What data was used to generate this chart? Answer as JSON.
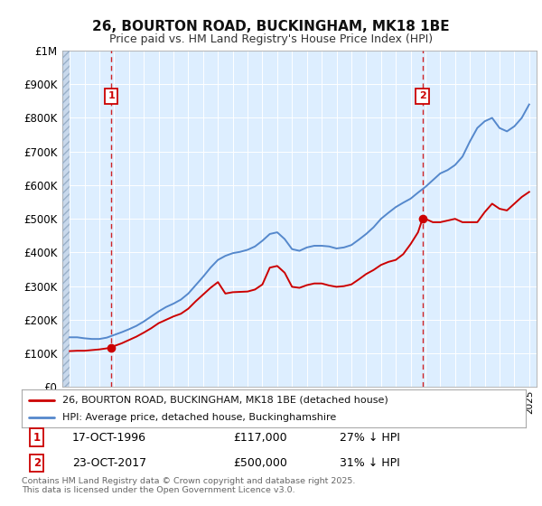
{
  "title": "26, BOURTON ROAD, BUCKINGHAM, MK18 1BE",
  "subtitle": "Price paid vs. HM Land Registry's House Price Index (HPI)",
  "bg_color": "#ddeeff",
  "grid_color": "#ffffff",
  "red_line_color": "#cc0000",
  "blue_line_color": "#5588cc",
  "sale1_year": 1996.8,
  "sale1_price": 117000,
  "sale1_label": "1",
  "sale2_year": 2017.8,
  "sale2_price": 500000,
  "sale2_label": "2",
  "ylim": [
    0,
    1000000
  ],
  "xlim_start": 1993.5,
  "xlim_end": 2025.5,
  "footer": "Contains HM Land Registry data © Crown copyright and database right 2025.\nThis data is licensed under the Open Government Licence v3.0.",
  "legend_line1": "26, BOURTON ROAD, BUCKINGHAM, MK18 1BE (detached house)",
  "legend_line2": "HPI: Average price, detached house, Buckinghamshire",
  "annotation1_date": "17-OCT-1996",
  "annotation1_price": "£117,000",
  "annotation1_note": "27% ↓ HPI",
  "annotation2_date": "23-OCT-2017",
  "annotation2_price": "£500,000",
  "annotation2_note": "31% ↓ HPI",
  "hpi_years": [
    1994,
    1994.5,
    1995,
    1995.5,
    1996,
    1996.5,
    1997,
    1997.5,
    1998,
    1998.5,
    1999,
    1999.5,
    2000,
    2000.5,
    2001,
    2001.5,
    2002,
    2002.5,
    2003,
    2003.5,
    2004,
    2004.5,
    2005,
    2005.5,
    2006,
    2006.5,
    2007,
    2007.5,
    2008,
    2008.5,
    2009,
    2009.5,
    2010,
    2010.5,
    2011,
    2011.5,
    2012,
    2012.5,
    2013,
    2013.5,
    2014,
    2014.5,
    2015,
    2015.5,
    2016,
    2016.5,
    2017,
    2017.5,
    2018,
    2018.5,
    2019,
    2019.5,
    2020,
    2020.5,
    2021,
    2021.5,
    2022,
    2022.5,
    2023,
    2023.5,
    2024,
    2024.5,
    2025
  ],
  "hpi_values": [
    148000,
    148000,
    145000,
    143000,
    143000,
    147000,
    155000,
    163000,
    172000,
    182000,
    195000,
    210000,
    225000,
    238000,
    248000,
    260000,
    278000,
    303000,
    328000,
    355000,
    378000,
    390000,
    398000,
    402000,
    408000,
    418000,
    435000,
    455000,
    460000,
    440000,
    410000,
    405000,
    415000,
    420000,
    420000,
    418000,
    412000,
    415000,
    422000,
    438000,
    455000,
    475000,
    500000,
    518000,
    535000,
    548000,
    560000,
    578000,
    595000,
    615000,
    635000,
    645000,
    660000,
    685000,
    730000,
    770000,
    790000,
    800000,
    770000,
    760000,
    775000,
    800000,
    840000
  ],
  "red_years": [
    1994,
    1994.5,
    1995,
    1995.5,
    1996,
    1996.8,
    1997,
    1997.5,
    1998,
    1998.5,
    1999,
    1999.5,
    2000,
    2000.5,
    2001,
    2001.5,
    2002,
    2002.5,
    2003,
    2003.5,
    2004,
    2004.5,
    2005,
    2005.5,
    2006,
    2006.5,
    2007,
    2007.5,
    2008,
    2008.5,
    2009,
    2009.5,
    2010,
    2010.5,
    2011,
    2011.5,
    2012,
    2012.5,
    2013,
    2013.5,
    2014,
    2014.5,
    2015,
    2015.5,
    2016,
    2016.5,
    2017,
    2017.5,
    2017.8,
    2018,
    2018.5,
    2019,
    2019.5,
    2020,
    2020.5,
    2021,
    2021.5,
    2022,
    2022.5,
    2023,
    2023.5,
    2024,
    2024.5,
    2025
  ],
  "red_values": [
    107000,
    108000,
    108000,
    110000,
    112000,
    117000,
    122000,
    130000,
    140000,
    150000,
    162000,
    175000,
    190000,
    200000,
    210000,
    218000,
    233000,
    255000,
    275000,
    295000,
    312000,
    278000,
    282000,
    283000,
    284000,
    290000,
    305000,
    355000,
    360000,
    340000,
    298000,
    295000,
    303000,
    308000,
    308000,
    302000,
    298000,
    300000,
    305000,
    320000,
    336000,
    348000,
    363000,
    372000,
    378000,
    395000,
    425000,
    460000,
    500000,
    500000,
    490000,
    490000,
    495000,
    500000,
    490000,
    490000,
    490000,
    520000,
    545000,
    530000,
    525000,
    545000,
    565000,
    580000
  ]
}
